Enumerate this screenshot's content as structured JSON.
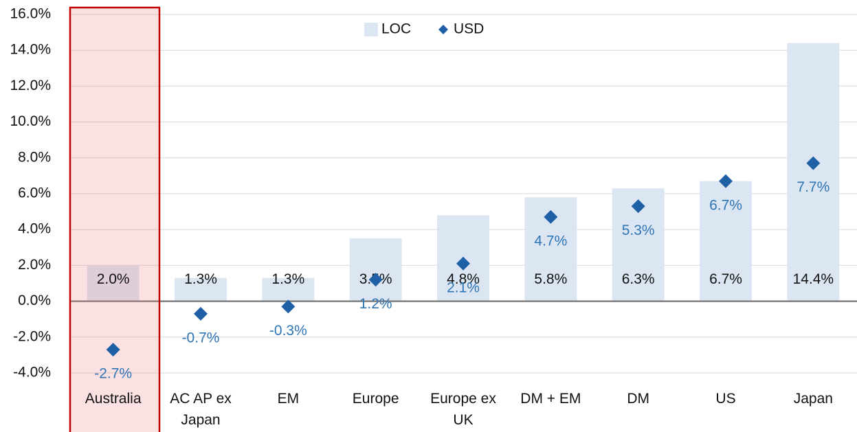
{
  "chart_data": {
    "type": "bar",
    "categories": [
      "Australia",
      "AC AP ex Japan",
      "EM",
      "Europe",
      "Europe ex UK",
      "DM + EM",
      "DM",
      "US",
      "Japan"
    ],
    "series": [
      {
        "name": "LOC",
        "color": "#dce6f2",
        "values": [
          2.0,
          1.3,
          1.3,
          3.5,
          4.8,
          5.8,
          6.3,
          6.7,
          14.4
        ],
        "value_labels": [
          "2.0%",
          "1.3%",
          "1.3%",
          "3.5%",
          "4.8%",
          "5.8%",
          "6.3%",
          "6.7%",
          "14.4%"
        ]
      },
      {
        "name": "USD",
        "type": "scatter",
        "color": "#1f5fa6",
        "values": [
          -2.7,
          -0.7,
          -0.3,
          1.2,
          2.1,
          4.7,
          5.3,
          6.7,
          7.7
        ],
        "value_labels": [
          "-2.7%",
          "-0.7%",
          "-0.3%",
          "1.2%",
          "2.1%",
          "4.7%",
          "5.3%",
          "6.7%",
          "7.7%"
        ]
      }
    ],
    "ylim": [
      -4,
      16
    ],
    "yticks": [
      {
        "value": -4,
        "label": "-4.0%"
      },
      {
        "value": -2,
        "label": "-2.0%"
      },
      {
        "value": 0,
        "label": "0.0%"
      },
      {
        "value": 2,
        "label": "2.0%"
      },
      {
        "value": 4,
        "label": "4.0%"
      },
      {
        "value": 6,
        "label": "6.0%"
      },
      {
        "value": 8,
        "label": "8.0%"
      },
      {
        "value": 10,
        "label": "10.0%"
      },
      {
        "value": 12,
        "label": "12.0%"
      },
      {
        "value": 14,
        "label": "14.0%"
      },
      {
        "value": 16,
        "label": "16.0%"
      }
    ],
    "grid": true,
    "legend": "top"
  }
}
